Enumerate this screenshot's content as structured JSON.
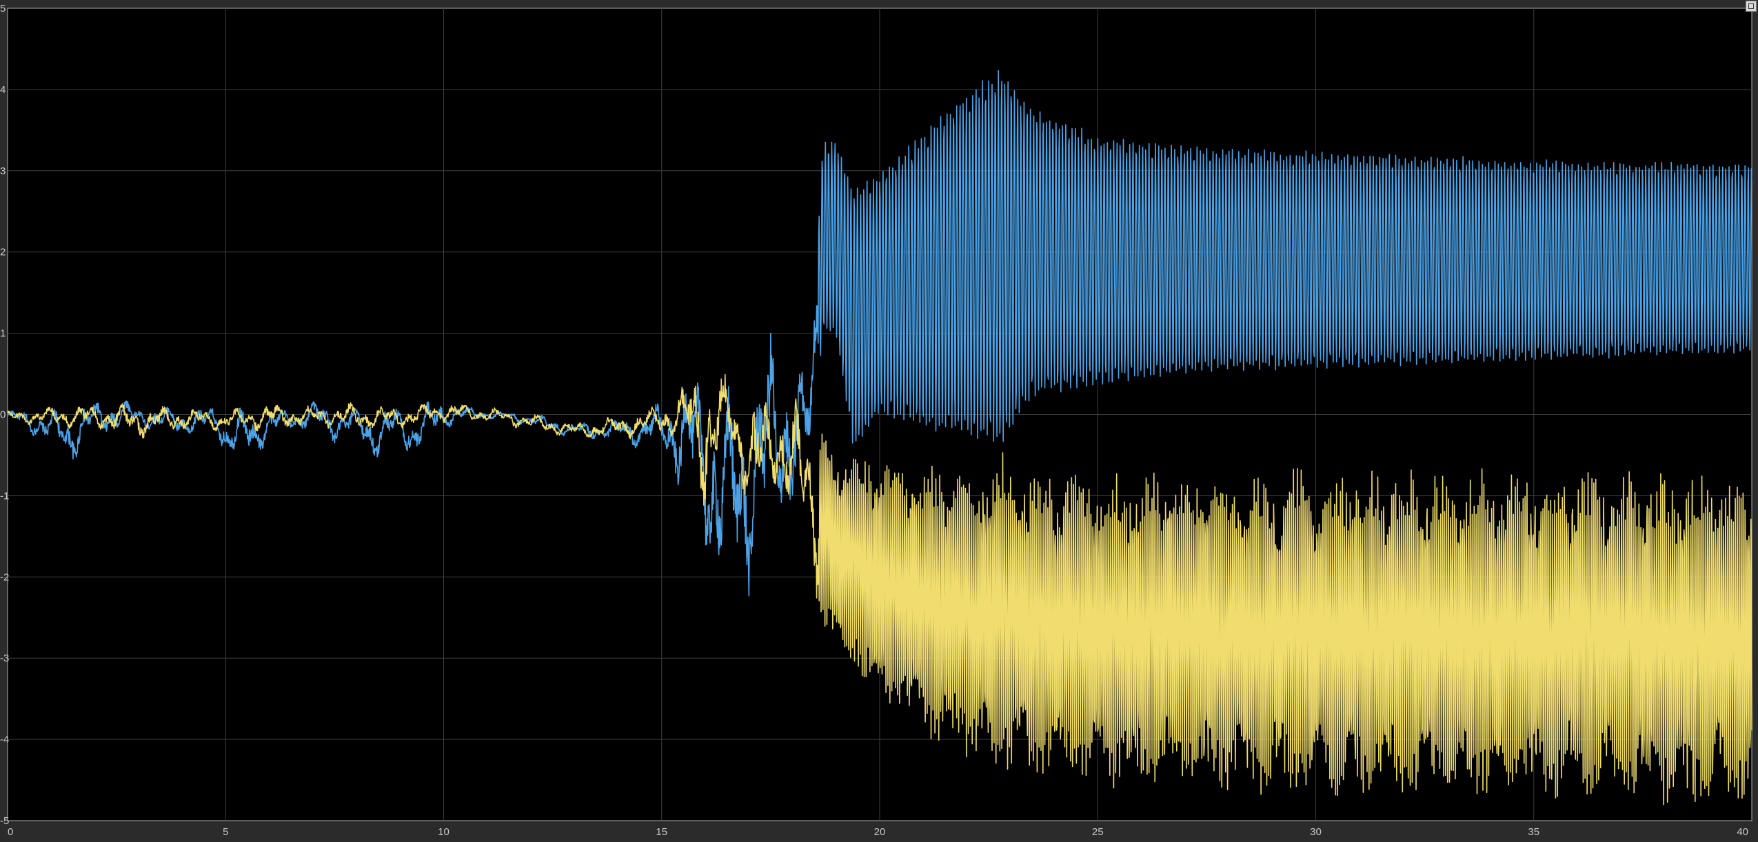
{
  "colors": {
    "background": "#2b2b2b",
    "plot_background": "#000000",
    "grid": "#3e3e3e",
    "axis": "#b0b0b0",
    "tick_text": "#c8c8c8",
    "series": [
      "#4da3e8",
      "#f0dd6e"
    ]
  },
  "corner_button_icon": "maximize-icon",
  "chart_data": {
    "type": "line",
    "title": "",
    "xlabel": "",
    "ylabel": "",
    "xlim": [
      0,
      40
    ],
    "ylim": [
      -5,
      5
    ],
    "grid": true,
    "legend": "none",
    "x_ticks": [
      "0",
      "5",
      "10",
      "15",
      "20",
      "25",
      "30",
      "35",
      "40"
    ],
    "y_ticks": [
      "5",
      "4",
      "3",
      "2",
      "1",
      "0",
      "-1",
      "-2",
      "-3",
      "-4",
      "-5"
    ],
    "series": [
      {
        "color": "#4da3e8",
        "t": [
          0,
          1,
          1.4,
          2,
          2.6,
          3,
          4,
          4.8,
          5,
          5.6,
          6,
          7,
          7.5,
          8,
          8.4,
          9,
          9.3,
          10,
          10.5,
          11,
          12,
          13,
          14,
          14.5,
          15,
          15.3,
          15.7,
          16,
          16.3,
          16.6,
          16.9,
          17.2,
          17.5,
          17.8,
          18.1,
          18.4,
          18.7,
          19,
          19.4,
          20,
          21,
          22,
          22.8,
          23.5,
          25,
          27.5,
          30,
          32.5,
          35,
          37.5,
          40
        ],
        "upper": [
          0.05,
          0.05,
          0.12,
          0.18,
          0.22,
          0.1,
          0.1,
          0.12,
          0.05,
          0.1,
          0.06,
          0.2,
          0.1,
          0.12,
          0.1,
          0.12,
          0.12,
          0.22,
          0.12,
          0.05,
          0.02,
          -0.1,
          -0.05,
          0.05,
          0.15,
          0.45,
          0.55,
          0.7,
          0.5,
          0.3,
          0.6,
          0.9,
          1.0,
          1.4,
          0.7,
          0.5,
          3.4,
          3.4,
          2.8,
          3.0,
          3.5,
          4.0,
          4.3,
          3.8,
          3.45,
          3.3,
          3.25,
          3.2,
          3.15,
          3.12,
          3.1
        ],
        "lower": [
          -0.05,
          -0.4,
          -0.65,
          -0.3,
          -0.2,
          -0.15,
          -0.3,
          -0.25,
          -0.55,
          -0.6,
          -0.3,
          -0.2,
          -0.35,
          -0.3,
          -0.6,
          -0.35,
          -0.6,
          -0.2,
          -0.1,
          -0.05,
          -0.15,
          -0.3,
          -0.35,
          -0.45,
          -0.5,
          -0.8,
          -1.3,
          -1.8,
          -2.3,
          -2.6,
          -2.4,
          -1.9,
          -2.2,
          -1.5,
          -1.2,
          -0.8,
          1.0,
          0.95,
          -0.5,
          0.0,
          -0.2,
          -0.3,
          -0.4,
          0.2,
          0.35,
          0.5,
          0.55,
          0.6,
          0.65,
          0.7,
          0.75
        ]
      },
      {
        "color": "#f0dd6e",
        "t": [
          0,
          1,
          2,
          3,
          4,
          5,
          6,
          7,
          8,
          9,
          10,
          11,
          12,
          13,
          14,
          14.5,
          15,
          15.3,
          15.7,
          16,
          16.3,
          16.6,
          16.9,
          17.2,
          17.5,
          17.8,
          18.1,
          18.4,
          18.7,
          19,
          19.5,
          20,
          21,
          22,
          22.8,
          23.5,
          25,
          27.5,
          30,
          32.5,
          35,
          37.5,
          40
        ],
        "upper": [
          0.05,
          0.1,
          0.15,
          0.12,
          0.1,
          0.05,
          0.15,
          0.1,
          0.15,
          0.1,
          0.18,
          0.1,
          0.02,
          -0.1,
          0.0,
          0.05,
          0.15,
          0.3,
          0.5,
          0.8,
          0.6,
          0.4,
          0.2,
          0.3,
          0.1,
          0.3,
          0.2,
          -0.1,
          -0.3,
          -0.45,
          -0.6,
          -0.7,
          -0.8,
          -0.9,
          -0.7,
          -0.9,
          -0.95,
          -0.95,
          -0.9,
          -0.9,
          -0.9,
          -0.95,
          -1.0
        ],
        "lower": [
          -0.1,
          -0.15,
          -0.2,
          -0.3,
          -0.2,
          -0.2,
          -0.2,
          -0.15,
          -0.2,
          -0.2,
          -0.1,
          -0.1,
          -0.2,
          -0.3,
          -0.3,
          -0.3,
          -0.25,
          -0.4,
          -0.6,
          -1.2,
          -0.8,
          -0.6,
          -1.0,
          -1.4,
          -1.0,
          -1.0,
          -1.5,
          -2.0,
          -2.5,
          -2.8,
          -3.0,
          -3.4,
          -3.8,
          -4.0,
          -4.2,
          -4.3,
          -4.35,
          -4.4,
          -4.45,
          -4.5,
          -4.5,
          -4.55,
          -4.6
        ]
      }
    ]
  }
}
